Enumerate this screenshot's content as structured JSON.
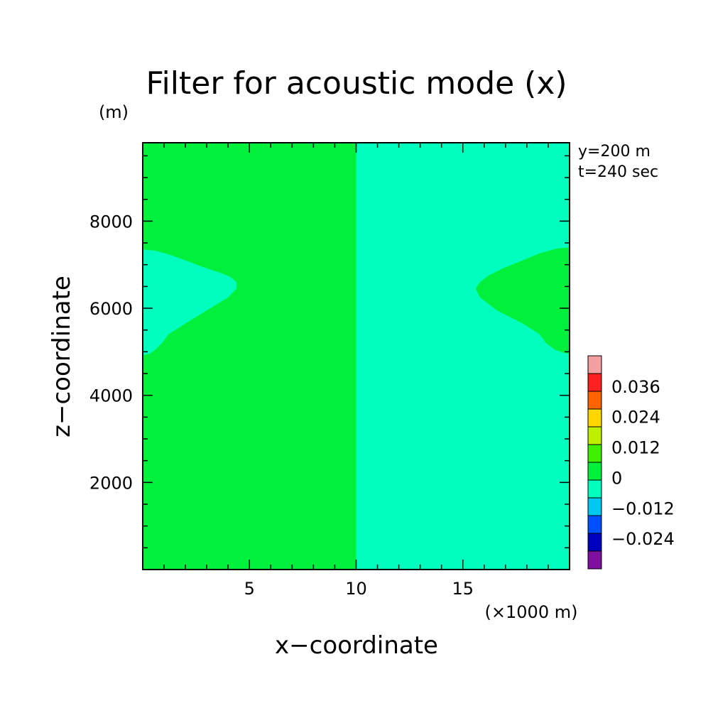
{
  "chart_data": {
    "type": "heatmap",
    "title": "Filter for acoustic mode (x)",
    "xlabel": "x−coordinate",
    "ylabel": "z−coordinate",
    "x_unit": "(×1000 m)",
    "y_unit": "(m)",
    "annotations": [
      "y=200 m",
      "t=240 sec"
    ],
    "xlim": [
      0,
      20
    ],
    "ylim": [
      0,
      9800
    ],
    "x_ticks": [
      5,
      10,
      15
    ],
    "x_tick_labels": [
      "5",
      "10",
      "15"
    ],
    "y_ticks": [
      2000,
      4000,
      6000,
      8000
    ],
    "y_tick_labels": [
      "2000",
      "4000",
      "6000",
      "8000"
    ],
    "grid": false,
    "colorbar": {
      "levels": [
        -0.036,
        -0.024,
        -0.012,
        0,
        0.012,
        0.024,
        0.036,
        0.048
      ],
      "tick_values": [
        -0.024,
        -0.012,
        0,
        0.012,
        0.024,
        0.036
      ],
      "tick_labels": [
        "−0.024",
        "−0.012",
        "0",
        "0.012",
        "0.024",
        "0.036"
      ],
      "colors": [
        "#7f0f9f",
        "#0000bf",
        "#0050ff",
        "#00c8f0",
        "#00ffbf",
        "#00f03c",
        "#3fef00",
        "#bfef00",
        "#ffd700",
        "#ff6400",
        "#ff2020",
        "#f5a0a0"
      ]
    },
    "regions": [
      {
        "name": "left-half",
        "x_range": [
          0,
          10
        ],
        "z_range": [
          0,
          9800
        ],
        "sign": "positive",
        "color": "#00f03c"
      },
      {
        "name": "right-half",
        "x_range": [
          10,
          20
        ],
        "z_range": [
          0,
          9800
        ],
        "sign": "negative",
        "color": "#00ffbf"
      },
      {
        "name": "left-lobe",
        "sign": "negative",
        "color": "#00ffbf",
        "boundary": [
          [
            0,
            7350
          ],
          [
            0.6,
            7320
          ],
          [
            1.2,
            7240
          ],
          [
            2,
            7100
          ],
          [
            2.8,
            6950
          ],
          [
            3.6,
            6820
          ],
          [
            4.1,
            6720
          ],
          [
            4.4,
            6600
          ],
          [
            4.4,
            6450
          ],
          [
            4.0,
            6250
          ],
          [
            3.0,
            5950
          ],
          [
            2.0,
            5650
          ],
          [
            1.2,
            5400
          ],
          [
            0.9,
            5200
          ],
          [
            0.6,
            5050
          ],
          [
            0.3,
            4950
          ],
          [
            0,
            4920
          ]
        ]
      },
      {
        "name": "right-lobe",
        "sign": "positive",
        "color": "#00f03c",
        "boundary": [
          [
            20,
            7400
          ],
          [
            19.4,
            7370
          ],
          [
            18.6,
            7260
          ],
          [
            17.8,
            7100
          ],
          [
            16.9,
            6920
          ],
          [
            16.2,
            6750
          ],
          [
            15.8,
            6600
          ],
          [
            15.6,
            6450
          ],
          [
            15.8,
            6250
          ],
          [
            16.6,
            5950
          ],
          [
            17.8,
            5650
          ],
          [
            18.6,
            5400
          ],
          [
            18.9,
            5200
          ],
          [
            19.3,
            5050
          ],
          [
            19.7,
            4980
          ],
          [
            20,
            4950
          ]
        ]
      }
    ]
  }
}
